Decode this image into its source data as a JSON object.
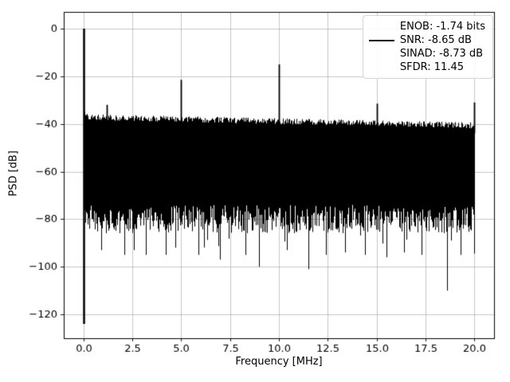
{
  "chart_data": {
    "type": "line",
    "title": "",
    "xlabel": "Frequency [MHz]",
    "ylabel": "PSD [dB]",
    "xlim": [
      -1,
      21
    ],
    "ylim": [
      -130,
      7
    ],
    "x_ticks": [
      0,
      2.5,
      5,
      7.5,
      10,
      12.5,
      15,
      17.5,
      20
    ],
    "x_tick_labels": [
      "0.0",
      "2.5",
      "5.0",
      "7.5",
      "10.0",
      "12.5",
      "15.0",
      "17.5",
      "20.0"
    ],
    "y_ticks": [
      0,
      -20,
      -40,
      -60,
      -80,
      -100,
      -120
    ],
    "y_tick_labels": [
      "0",
      "−20",
      "−40",
      "−60",
      "−80",
      "−100",
      "−120"
    ],
    "grid": true,
    "legend_position": "upper right",
    "line_color": "#000000",
    "grid_color": "#b8b8b8",
    "frame_color": "#000000",
    "legend": {
      "entries": [
        "ENOB: -1.74 bits",
        "SNR: -8.65 dB",
        "SINAD: -8.73 dB",
        "SFDR: 11.45"
      ]
    },
    "dc": {
      "f": 0.0,
      "peak_db": 0,
      "dip_db": -124
    },
    "tones": [
      {
        "f": 1.2,
        "db": -32
      },
      {
        "f": 5.0,
        "db": -21.5
      },
      {
        "f": 10.0,
        "db": -15
      },
      {
        "f": 15.0,
        "db": -31.5
      },
      {
        "f": 20.0,
        "db": -31
      }
    ],
    "deep_spikes": [
      {
        "f": 0.9,
        "db": -93
      },
      {
        "f": 2.1,
        "db": -95
      },
      {
        "f": 2.6,
        "db": -93
      },
      {
        "f": 3.2,
        "db": -95
      },
      {
        "f": 4.2,
        "db": -95
      },
      {
        "f": 4.7,
        "db": -92
      },
      {
        "f": 5.9,
        "db": -95
      },
      {
        "f": 7.0,
        "db": -97
      },
      {
        "f": 8.3,
        "db": -95
      },
      {
        "f": 9.0,
        "db": -100
      },
      {
        "f": 10.4,
        "db": -93
      },
      {
        "f": 11.5,
        "db": -101
      },
      {
        "f": 12.4,
        "db": -95
      },
      {
        "f": 13.4,
        "db": -94
      },
      {
        "f": 14.4,
        "db": -95
      },
      {
        "f": 15.5,
        "db": -96
      },
      {
        "f": 16.4,
        "db": -94
      },
      {
        "f": 17.3,
        "db": -95
      },
      {
        "f": 18.6,
        "db": -110
      },
      {
        "f": 19.3,
        "db": -95
      }
    ],
    "noise": {
      "seed": 42,
      "top_start_db": -37.5,
      "top_end_db": -41,
      "top_jitter_db": 2.5,
      "bottom_base": 74,
      "bottom_spread": 12,
      "deep_prob": 0.08,
      "deep_extra_db": 11
    }
  }
}
